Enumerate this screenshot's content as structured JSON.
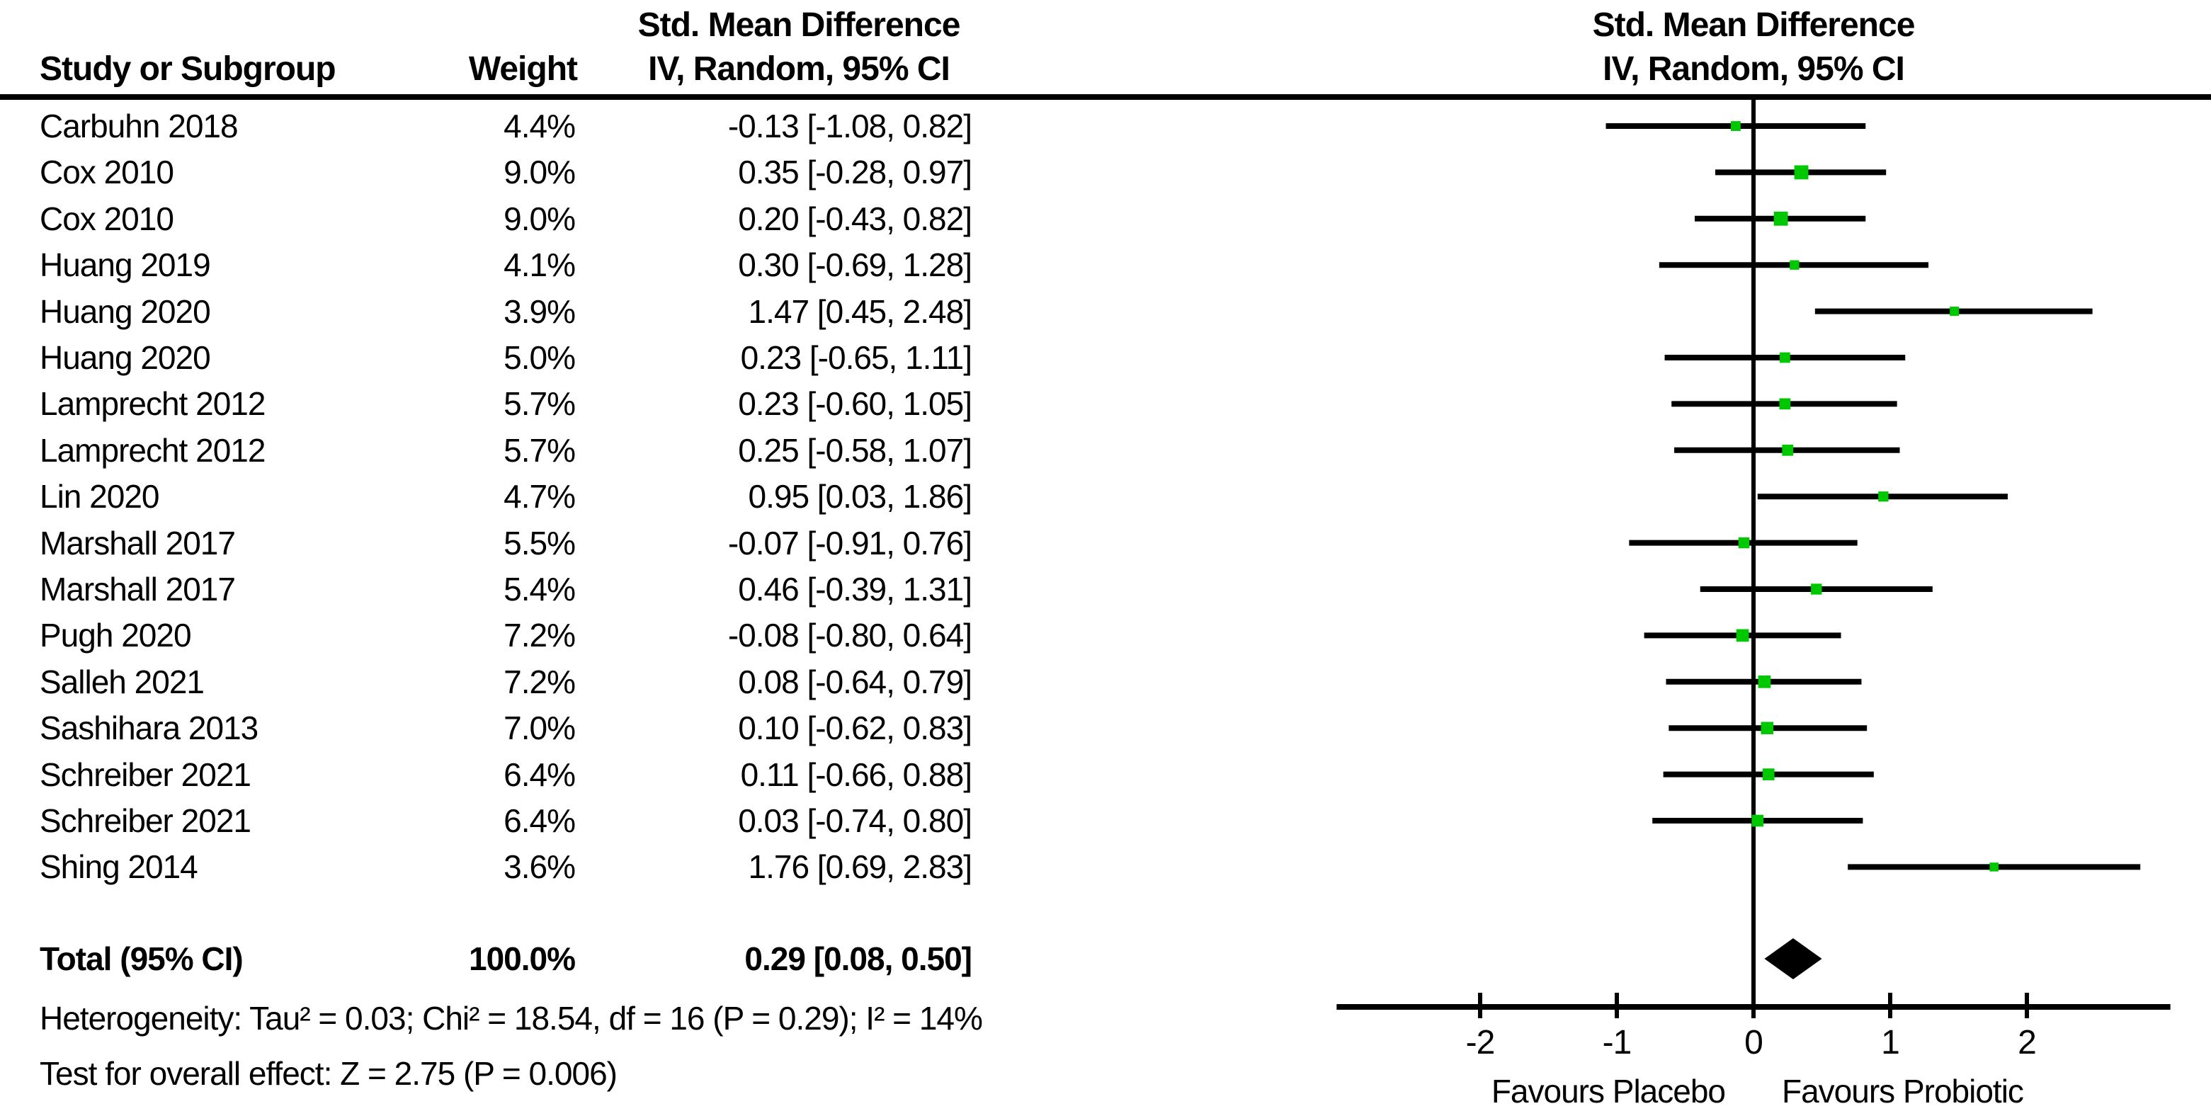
{
  "header": {
    "left_effect_title": "Std. Mean Difference",
    "study_col": "Study or Subgroup",
    "weight_col": "Weight",
    "ci_col": "IV, Random, 95% CI",
    "right_effect_title": "Std. Mean Difference",
    "right_ci_subtitle": "IV, Random, 95% CI"
  },
  "chart_data": {
    "type": "forest",
    "effect_measure": "Std. Mean Difference",
    "method": "IV, Random, 95% CI",
    "marker_color": "#00c800",
    "line_color": "#000000",
    "studies": [
      {
        "name": "Carbuhn 2018",
        "weight_label": "4.4%",
        "weight_pct": 4.4,
        "est": -0.13,
        "lo": -1.08,
        "hi": 0.82,
        "effect_label": "-0.13 [-1.08, 0.82]"
      },
      {
        "name": "Cox 2010",
        "weight_label": "9.0%",
        "weight_pct": 9.0,
        "est": 0.35,
        "lo": -0.28,
        "hi": 0.97,
        "effect_label": "0.35 [-0.28, 0.97]"
      },
      {
        "name": "Cox 2010",
        "weight_label": "9.0%",
        "weight_pct": 9.0,
        "est": 0.2,
        "lo": -0.43,
        "hi": 0.82,
        "effect_label": "0.20 [-0.43, 0.82]"
      },
      {
        "name": "Huang 2019",
        "weight_label": "4.1%",
        "weight_pct": 4.1,
        "est": 0.3,
        "lo": -0.69,
        "hi": 1.28,
        "effect_label": "0.30 [-0.69, 1.28]"
      },
      {
        "name": "Huang 2020",
        "weight_label": "3.9%",
        "weight_pct": 3.9,
        "est": 1.47,
        "lo": 0.45,
        "hi": 2.48,
        "effect_label": "1.47 [0.45, 2.48]"
      },
      {
        "name": "Huang 2020",
        "weight_label": "5.0%",
        "weight_pct": 5.0,
        "est": 0.23,
        "lo": -0.65,
        "hi": 1.11,
        "effect_label": "0.23 [-0.65, 1.11]"
      },
      {
        "name": "Lamprecht 2012",
        "weight_label": "5.7%",
        "weight_pct": 5.7,
        "est": 0.23,
        "lo": -0.6,
        "hi": 1.05,
        "effect_label": "0.23 [-0.60, 1.05]"
      },
      {
        "name": "Lamprecht 2012",
        "weight_label": "5.7%",
        "weight_pct": 5.7,
        "est": 0.25,
        "lo": -0.58,
        "hi": 1.07,
        "effect_label": "0.25 [-0.58, 1.07]"
      },
      {
        "name": "Lin 2020",
        "weight_label": "4.7%",
        "weight_pct": 4.7,
        "est": 0.95,
        "lo": 0.03,
        "hi": 1.86,
        "effect_label": "0.95 [0.03, 1.86]"
      },
      {
        "name": "Marshall 2017",
        "weight_label": "5.5%",
        "weight_pct": 5.5,
        "est": -0.07,
        "lo": -0.91,
        "hi": 0.76,
        "effect_label": "-0.07 [-0.91, 0.76]"
      },
      {
        "name": "Marshall 2017",
        "weight_label": "5.4%",
        "weight_pct": 5.4,
        "est": 0.46,
        "lo": -0.39,
        "hi": 1.31,
        "effect_label": "0.46 [-0.39, 1.31]"
      },
      {
        "name": "Pugh 2020",
        "weight_label": "7.2%",
        "weight_pct": 7.2,
        "est": -0.08,
        "lo": -0.8,
        "hi": 0.64,
        "effect_label": "-0.08 [-0.80, 0.64]"
      },
      {
        "name": "Salleh 2021",
        "weight_label": "7.2%",
        "weight_pct": 7.2,
        "est": 0.08,
        "lo": -0.64,
        "hi": 0.79,
        "effect_label": "0.08 [-0.64, 0.79]"
      },
      {
        "name": "Sashihara 2013",
        "weight_label": "7.0%",
        "weight_pct": 7.0,
        "est": 0.1,
        "lo": -0.62,
        "hi": 0.83,
        "effect_label": "0.10 [-0.62, 0.83]"
      },
      {
        "name": "Schreiber 2021",
        "weight_label": "6.4%",
        "weight_pct": 6.4,
        "est": 0.11,
        "lo": -0.66,
        "hi": 0.88,
        "effect_label": "0.11 [-0.66, 0.88]"
      },
      {
        "name": "Schreiber 2021",
        "weight_label": "6.4%",
        "weight_pct": 6.4,
        "est": 0.03,
        "lo": -0.74,
        "hi": 0.8,
        "effect_label": "0.03 [-0.74, 0.80]"
      },
      {
        "name": "Shing 2014",
        "weight_label": "3.6%",
        "weight_pct": 3.6,
        "est": 1.76,
        "lo": 0.69,
        "hi": 2.83,
        "effect_label": "1.76 [0.69, 2.83]"
      }
    ],
    "total": {
      "name": "Total (95% CI)",
      "weight_label": "100.0%",
      "est": 0.29,
      "lo": 0.08,
      "hi": 0.5,
      "effect_label": "0.29 [0.08, 0.50]"
    },
    "axis": {
      "ticks": [
        -2,
        -1,
        0,
        1,
        2
      ],
      "min": -3.05,
      "max": 3.05,
      "left_label": "Favours Placebo",
      "right_label": "Favours Probiotic"
    },
    "footnotes": {
      "heterogeneity": "Heterogeneity: Tau² = 0.03; Chi² = 18.54, df = 16 (P = 0.29); I² = 14%",
      "overall_effect": "Test for overall effect: Z = 2.75 (P = 0.006)"
    }
  }
}
